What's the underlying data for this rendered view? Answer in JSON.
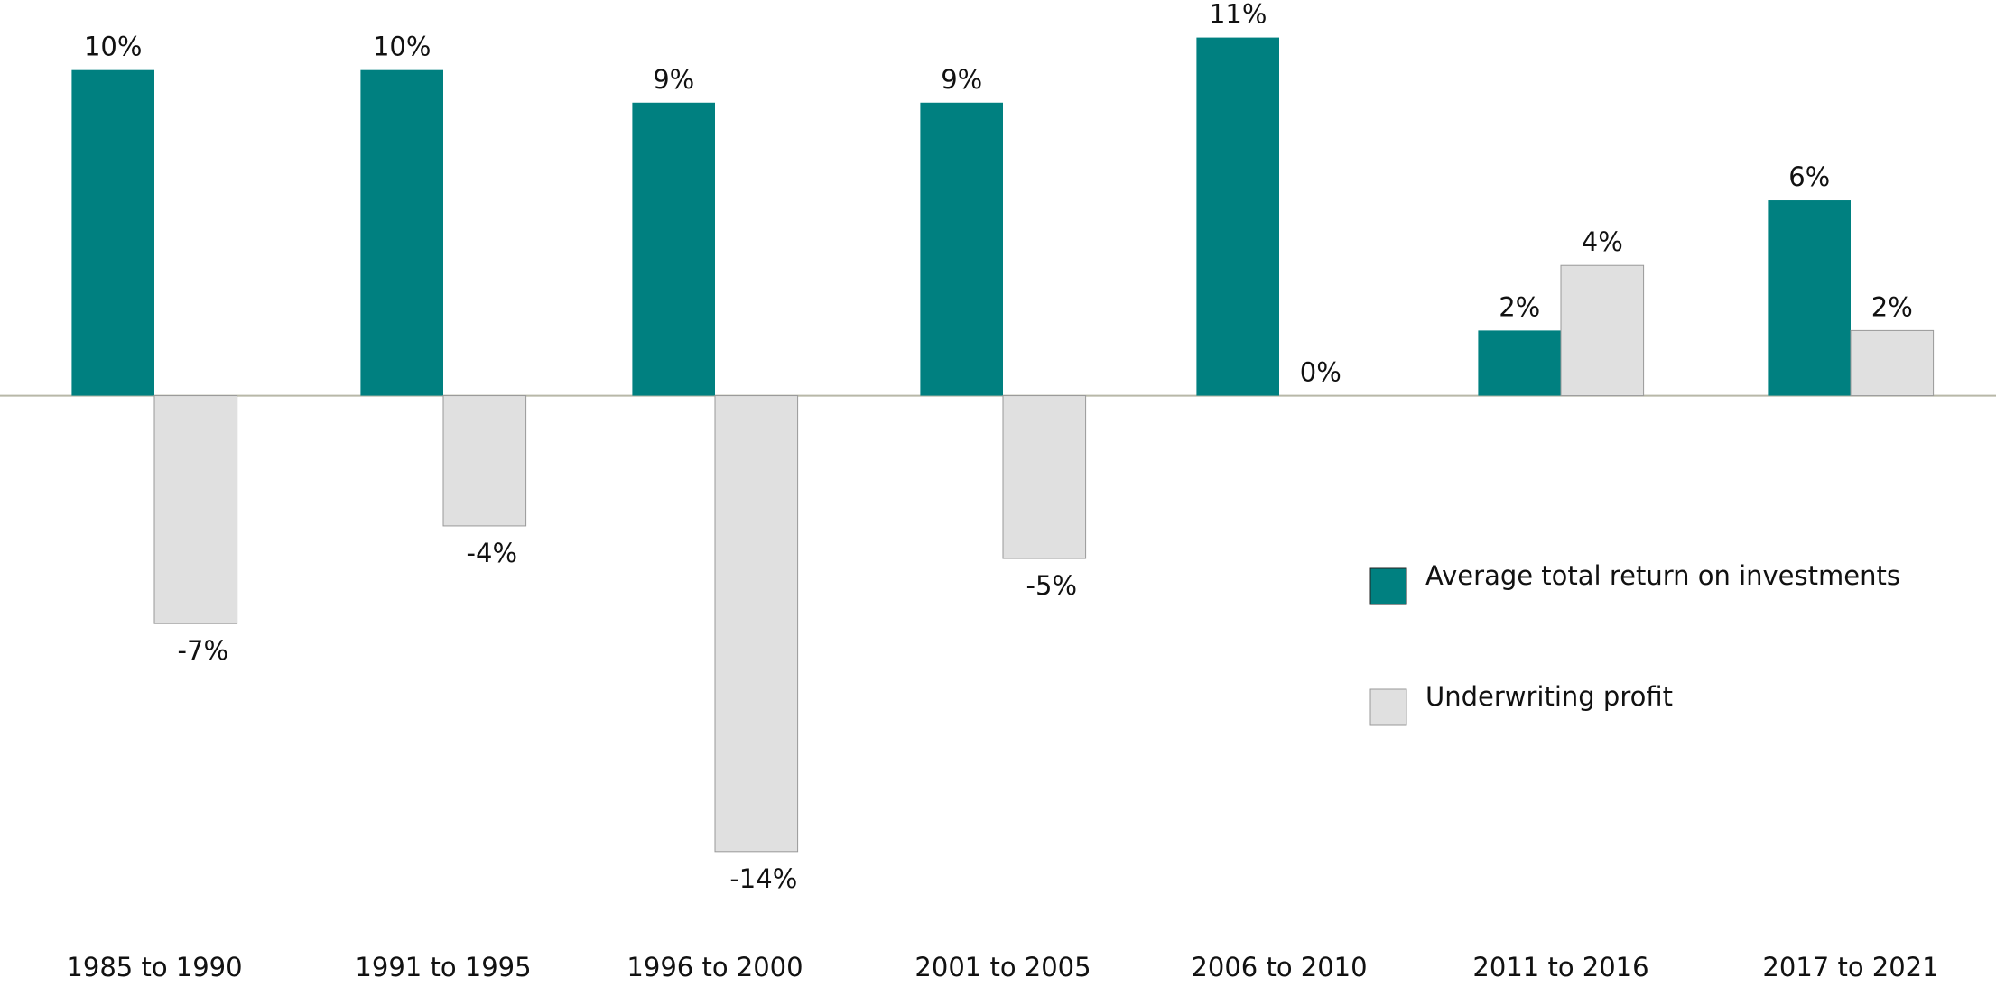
{
  "chart_data": {
    "type": "bar",
    "categories": [
      "1985 to 1990",
      "1991 to 1995",
      "1996 to 2000",
      "2001 to 2005",
      "2006 to 2010",
      "2011 to 2016",
      "2017 to 2021"
    ],
    "series": [
      {
        "name": "Average total return on investments",
        "color": "#008080",
        "values": [
          10,
          10,
          9,
          9,
          11,
          2,
          6
        ],
        "value_labels": [
          "10%",
          "10%",
          "9%",
          "9%",
          "11%",
          "2%",
          "6%"
        ]
      },
      {
        "name": "Underwriting profit",
        "color": "#e0e0e0",
        "values": [
          -7,
          -4,
          -14,
          -5,
          0,
          4,
          2
        ],
        "value_labels": [
          "-7%",
          "-4%",
          "-14%",
          "-5%",
          "0%",
          "4%",
          "2%"
        ]
      }
    ],
    "ylim": [
      -16,
      12
    ],
    "legend": "right",
    "grid": false
  }
}
